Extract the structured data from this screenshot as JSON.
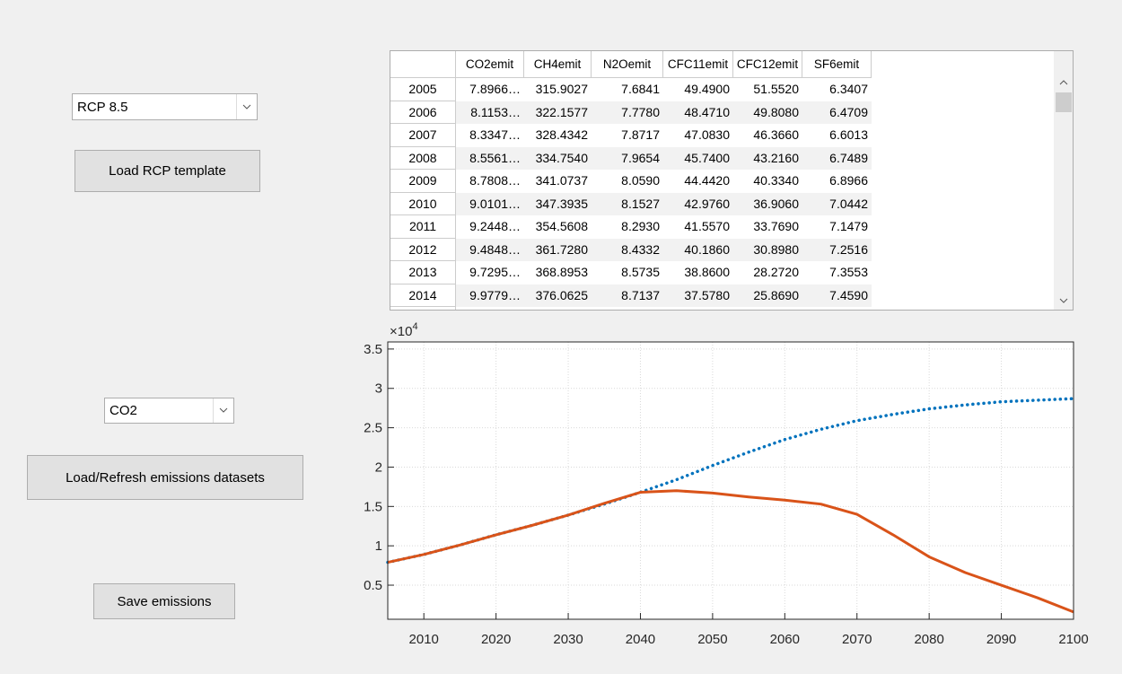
{
  "controls": {
    "scenario_dropdown": "RCP 8.5",
    "load_template_button": "Load RCP template",
    "gas_dropdown": "CO2",
    "load_refresh_button": "Load/Refresh emissions datasets",
    "save_button": "Save emissions"
  },
  "table": {
    "columns": [
      "CO2emit",
      "CH4emit",
      "N2Oemit",
      "CFC11emit",
      "CFC12emit",
      "SF6emit"
    ],
    "rows": [
      [
        "2005",
        "7.8966…",
        "315.9027",
        "7.6841",
        "49.4900",
        "51.5520",
        "6.3407"
      ],
      [
        "2006",
        "8.1153…",
        "322.1577",
        "7.7780",
        "48.4710",
        "49.8080",
        "6.4709"
      ],
      [
        "2007",
        "8.3347…",
        "328.4342",
        "7.8717",
        "47.0830",
        "46.3660",
        "6.6013"
      ],
      [
        "2008",
        "8.5561…",
        "334.7540",
        "7.9654",
        "45.7400",
        "43.2160",
        "6.7489"
      ],
      [
        "2009",
        "8.7808…",
        "341.0737",
        "8.0590",
        "44.4420",
        "40.3340",
        "6.8966"
      ],
      [
        "2010",
        "9.0101…",
        "347.3935",
        "8.1527",
        "42.9760",
        "36.9060",
        "7.0442"
      ],
      [
        "2011",
        "9.2448…",
        "354.5608",
        "8.2930",
        "41.5570",
        "33.7690",
        "7.1479"
      ],
      [
        "2012",
        "9.4848…",
        "361.7280",
        "8.4332",
        "40.1860",
        "30.8980",
        "7.2516"
      ],
      [
        "2013",
        "9.7295…",
        "368.8953",
        "8.5735",
        "38.8600",
        "28.2720",
        "7.3553"
      ],
      [
        "2014",
        "9.9779…",
        "376.0625",
        "8.7137",
        "37.5780",
        "25.8690",
        "7.4590"
      ]
    ]
  },
  "chart_data": {
    "type": "line",
    "y_scale_base": "×10",
    "y_scale_exponent": "4",
    "x": [
      2005,
      2010,
      2015,
      2020,
      2025,
      2030,
      2035,
      2040,
      2045,
      2050,
      2055,
      2060,
      2065,
      2070,
      2075,
      2080,
      2085,
      2090,
      2095,
      2100
    ],
    "series": [
      {
        "color": "#0072bd",
        "style": "dotted",
        "values": [
          0.79,
          0.89,
          1.01,
          1.14,
          1.26,
          1.39,
          1.53,
          1.68,
          1.84,
          2.02,
          2.19,
          2.35,
          2.48,
          2.59,
          2.67,
          2.74,
          2.79,
          2.83,
          2.85,
          2.87
        ]
      },
      {
        "color": "#d95319",
        "style": "solid",
        "values": [
          0.79,
          0.89,
          1.01,
          1.14,
          1.26,
          1.39,
          1.54,
          1.68,
          1.7,
          1.67,
          1.62,
          1.58,
          1.53,
          1.4,
          1.14,
          0.86,
          0.66,
          0.5,
          0.34,
          0.16
        ]
      }
    ],
    "xlim": [
      2005,
      2100
    ],
    "ylim": [
      0.067,
      3.59
    ],
    "xticks": [
      2010,
      2020,
      2030,
      2040,
      2050,
      2060,
      2070,
      2080,
      2090,
      2100
    ],
    "yticks": [
      0.5,
      1,
      1.5,
      2,
      2.5,
      3,
      3.5
    ],
    "grid": true
  }
}
